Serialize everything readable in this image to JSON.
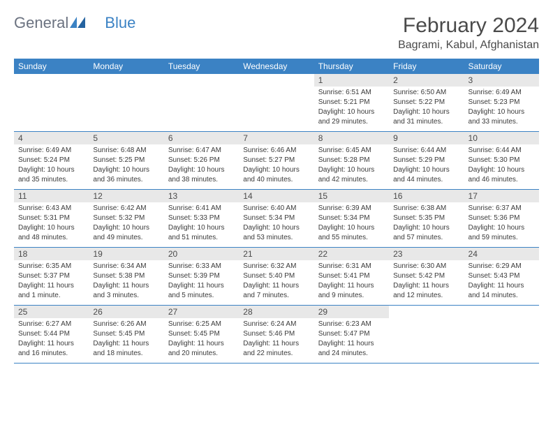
{
  "logo": {
    "text1": "General",
    "text2": "Blue"
  },
  "title": "February 2024",
  "location": "Bagrami, Kabul, Afghanistan",
  "weekdays": [
    "Sunday",
    "Monday",
    "Tuesday",
    "Wednesday",
    "Thursday",
    "Friday",
    "Saturday"
  ],
  "colors": {
    "header_bg": "#3b82c4",
    "header_text": "#ffffff",
    "daynum_bg": "#e8e8e8",
    "text": "#4a4a4a",
    "border": "#3b82c4"
  },
  "weeks": [
    [
      null,
      null,
      null,
      null,
      {
        "n": "1",
        "sr": "6:51 AM",
        "ss": "5:21 PM",
        "dl": "10 hours and 29 minutes."
      },
      {
        "n": "2",
        "sr": "6:50 AM",
        "ss": "5:22 PM",
        "dl": "10 hours and 31 minutes."
      },
      {
        "n": "3",
        "sr": "6:49 AM",
        "ss": "5:23 PM",
        "dl": "10 hours and 33 minutes."
      }
    ],
    [
      {
        "n": "4",
        "sr": "6:49 AM",
        "ss": "5:24 PM",
        "dl": "10 hours and 35 minutes."
      },
      {
        "n": "5",
        "sr": "6:48 AM",
        "ss": "5:25 PM",
        "dl": "10 hours and 36 minutes."
      },
      {
        "n": "6",
        "sr": "6:47 AM",
        "ss": "5:26 PM",
        "dl": "10 hours and 38 minutes."
      },
      {
        "n": "7",
        "sr": "6:46 AM",
        "ss": "5:27 PM",
        "dl": "10 hours and 40 minutes."
      },
      {
        "n": "8",
        "sr": "6:45 AM",
        "ss": "5:28 PM",
        "dl": "10 hours and 42 minutes."
      },
      {
        "n": "9",
        "sr": "6:44 AM",
        "ss": "5:29 PM",
        "dl": "10 hours and 44 minutes."
      },
      {
        "n": "10",
        "sr": "6:44 AM",
        "ss": "5:30 PM",
        "dl": "10 hours and 46 minutes."
      }
    ],
    [
      {
        "n": "11",
        "sr": "6:43 AM",
        "ss": "5:31 PM",
        "dl": "10 hours and 48 minutes."
      },
      {
        "n": "12",
        "sr": "6:42 AM",
        "ss": "5:32 PM",
        "dl": "10 hours and 49 minutes."
      },
      {
        "n": "13",
        "sr": "6:41 AM",
        "ss": "5:33 PM",
        "dl": "10 hours and 51 minutes."
      },
      {
        "n": "14",
        "sr": "6:40 AM",
        "ss": "5:34 PM",
        "dl": "10 hours and 53 minutes."
      },
      {
        "n": "15",
        "sr": "6:39 AM",
        "ss": "5:34 PM",
        "dl": "10 hours and 55 minutes."
      },
      {
        "n": "16",
        "sr": "6:38 AM",
        "ss": "5:35 PM",
        "dl": "10 hours and 57 minutes."
      },
      {
        "n": "17",
        "sr": "6:37 AM",
        "ss": "5:36 PM",
        "dl": "10 hours and 59 minutes."
      }
    ],
    [
      {
        "n": "18",
        "sr": "6:35 AM",
        "ss": "5:37 PM",
        "dl": "11 hours and 1 minute."
      },
      {
        "n": "19",
        "sr": "6:34 AM",
        "ss": "5:38 PM",
        "dl": "11 hours and 3 minutes."
      },
      {
        "n": "20",
        "sr": "6:33 AM",
        "ss": "5:39 PM",
        "dl": "11 hours and 5 minutes."
      },
      {
        "n": "21",
        "sr": "6:32 AM",
        "ss": "5:40 PM",
        "dl": "11 hours and 7 minutes."
      },
      {
        "n": "22",
        "sr": "6:31 AM",
        "ss": "5:41 PM",
        "dl": "11 hours and 9 minutes."
      },
      {
        "n": "23",
        "sr": "6:30 AM",
        "ss": "5:42 PM",
        "dl": "11 hours and 12 minutes."
      },
      {
        "n": "24",
        "sr": "6:29 AM",
        "ss": "5:43 PM",
        "dl": "11 hours and 14 minutes."
      }
    ],
    [
      {
        "n": "25",
        "sr": "6:27 AM",
        "ss": "5:44 PM",
        "dl": "11 hours and 16 minutes."
      },
      {
        "n": "26",
        "sr": "6:26 AM",
        "ss": "5:45 PM",
        "dl": "11 hours and 18 minutes."
      },
      {
        "n": "27",
        "sr": "6:25 AM",
        "ss": "5:45 PM",
        "dl": "11 hours and 20 minutes."
      },
      {
        "n": "28",
        "sr": "6:24 AM",
        "ss": "5:46 PM",
        "dl": "11 hours and 22 minutes."
      },
      {
        "n": "29",
        "sr": "6:23 AM",
        "ss": "5:47 PM",
        "dl": "11 hours and 24 minutes."
      },
      null,
      null
    ]
  ]
}
